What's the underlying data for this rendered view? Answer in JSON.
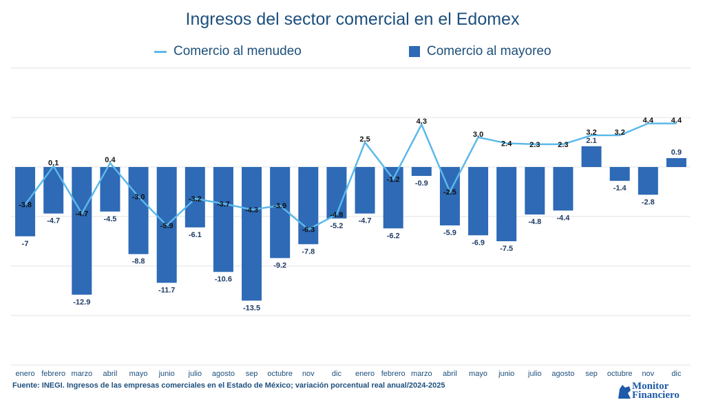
{
  "chart_data": {
    "type": "bar+line",
    "title": "Ingresos del sector comercial en el Edomex",
    "categories": [
      "enero",
      "febrero",
      "marzo",
      "abril",
      "mayo",
      "junio",
      "julio",
      "agosto",
      "sep",
      "octubre",
      "nov",
      "dic",
      "enero",
      "febrero",
      "marzo",
      "abril",
      "mayo",
      "junio",
      "julio",
      "agosto",
      "sep",
      "octubre",
      "nov",
      "dic"
    ],
    "series": [
      {
        "name": "Comercio al menudeo",
        "type": "line",
        "color": "#5bb8ea",
        "values": [
          -3.8,
          0.1,
          -4.7,
          0.4,
          -3.0,
          -5.9,
          -3.2,
          -3.7,
          -4.3,
          -3.9,
          -6.3,
          -4.8,
          2.5,
          -1.2,
          4.3,
          -2.5,
          3.0,
          2.4,
          2.3,
          2.3,
          3.2,
          3.2,
          4.4,
          4.4
        ],
        "labels": [
          "-3.8",
          "0.1",
          "-4.7",
          "0.4",
          "-3.0",
          "-5.9",
          "-3.2",
          "-3.7",
          "-4.3",
          "-3.9",
          "-6.3",
          "-4.8",
          "2.5",
          "-1.2",
          "4.3",
          "-2.5",
          "3.0",
          "2.4",
          "2.3",
          "2.3",
          "3.2",
          "3.2",
          "4.4",
          "4.4"
        ]
      },
      {
        "name": "Comercio al mayoreo",
        "type": "bar",
        "color": "#2e6ab5",
        "values": [
          -7,
          -4.7,
          -12.9,
          -4.5,
          -8.8,
          -11.7,
          -6.1,
          -10.6,
          -13.5,
          -9.2,
          -7.8,
          -5.2,
          -4.7,
          -6.2,
          -0.9,
          -5.9,
          -6.9,
          -7.5,
          -4.8,
          -4.4,
          2.1,
          -1.4,
          -2.8,
          0.9
        ],
        "labels": [
          "-7",
          "-4.7",
          "-12.9",
          "-4.5",
          "-8.8",
          "-11.7",
          "-6.1",
          "-10.6",
          "-13.5",
          "-9.2",
          "-7.8",
          "-5.2",
          "-4.7",
          "-6.2",
          "-0.9",
          "-5.9",
          "-6.9",
          "-7.5",
          "-4.8",
          "-4.4",
          "2.1",
          "-1.4",
          "-2.8",
          "0.9"
        ]
      }
    ],
    "ylim": [
      -20,
      10
    ],
    "yticks": [
      -20,
      -15,
      -10,
      -5,
      0,
      5,
      10
    ],
    "grid": true,
    "legend": "top"
  },
  "legend": {
    "line": "Comercio al menudeo",
    "bar": "Comercio al mayoreo"
  },
  "source": "Fuente: INEGI. Ingresos de las empresas comerciales en el Estado de México; variación porcentual real anual/2024-2025",
  "logo": {
    "line1": "Monitor",
    "line2": "Financiero"
  }
}
